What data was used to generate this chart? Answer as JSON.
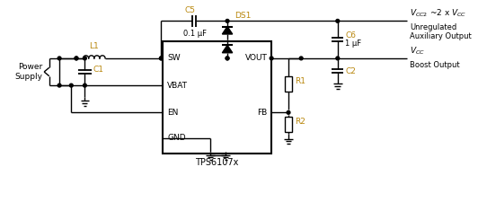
{
  "bg_color": "#ffffff",
  "line_color": "#000000",
  "label_color_orange": "#b8860b",
  "label_color_black": "#000000",
  "ic_label": "TPS6107x",
  "ic_pins_left": [
    "SW",
    "VBAT",
    "EN",
    "GND"
  ],
  "ic_pins_right": [
    "VOUT",
    "FB"
  ],
  "vcc2_label": "V",
  "vcc2_sub": "CC2",
  "vcc2_rest": " ~2 x V",
  "vcc2_sub2": "CC",
  "unregulated": "Unregulated",
  "aux_output": "Auxiliary Output",
  "vcc_label": "V",
  "vcc_sub": "CC",
  "boost_output": "Boost Output",
  "power_supply": [
    "Power",
    "Supply"
  ],
  "c5_label": "C5",
  "c5_val": "0.1 μF",
  "ds1_label": "DS1",
  "c6_label": "C6",
  "c6_val": "1 μF",
  "c1_label": "C1",
  "c2_label": "C2",
  "l1_label": "L1",
  "r1_label": "R1",
  "r2_label": "R2"
}
